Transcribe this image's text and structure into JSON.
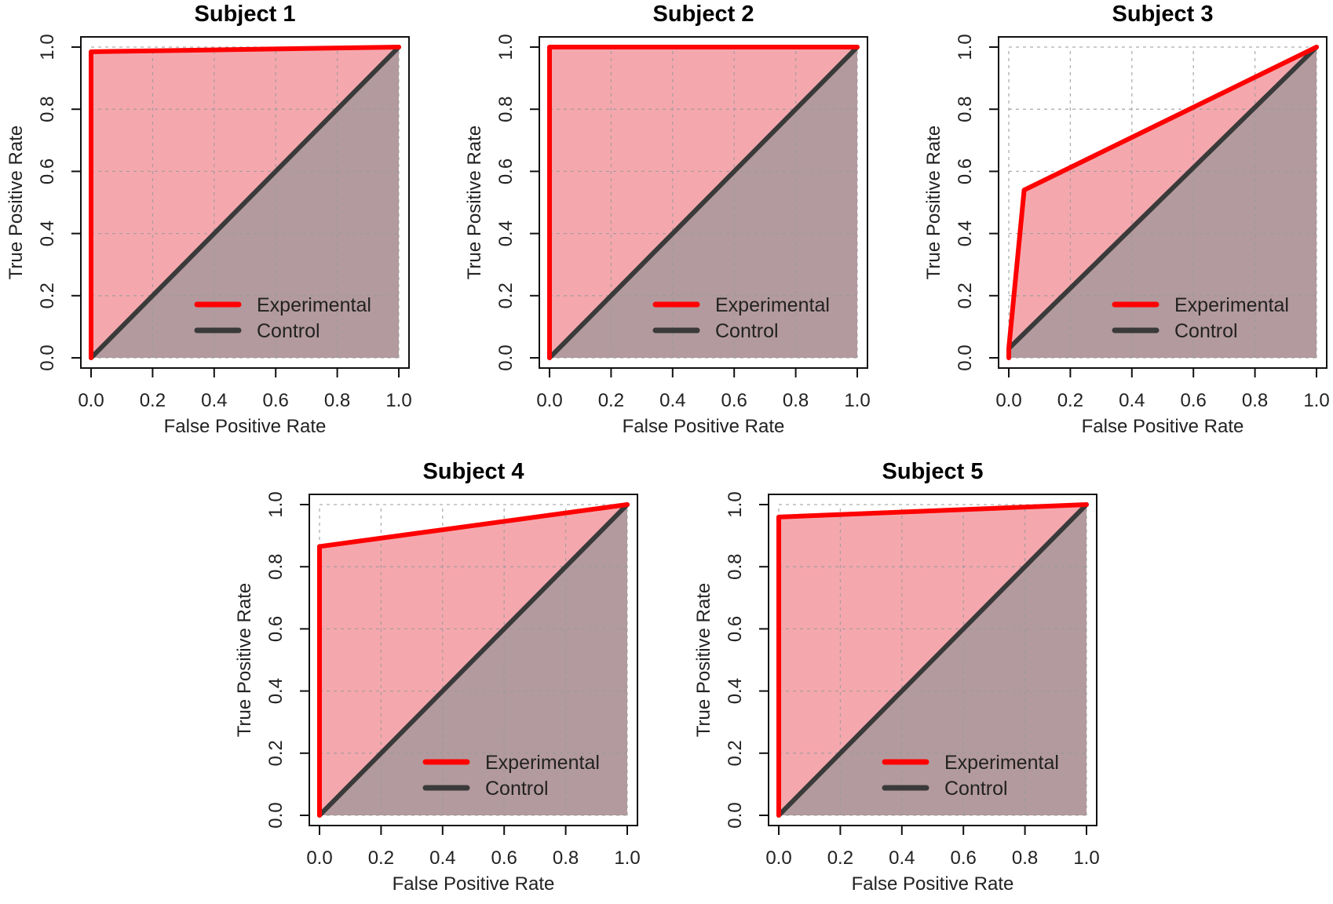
{
  "chart_data": [
    {
      "type": "line",
      "title": "Subject 1",
      "xlabel": "False Positive Rate",
      "ylabel": "True Positive Rate",
      "xlim": [
        0,
        1
      ],
      "ylim": [
        0,
        1
      ],
      "x_ticks": [
        "0.0",
        "0.2",
        "0.4",
        "0.6",
        "0.8",
        "1.0"
      ],
      "y_ticks": [
        "0.0",
        "0.2",
        "0.4",
        "0.6",
        "0.8",
        "1.0"
      ],
      "grid": true,
      "legend_position": "bottom-right",
      "series": [
        {
          "name": "Experimental",
          "color": "#ff0000",
          "fill": "#f4a8ae",
          "points": [
            [
              0,
              0
            ],
            [
              0,
              0.985
            ],
            [
              1,
              1
            ]
          ]
        },
        {
          "name": "Control",
          "color": "#3a3a3a",
          "fill": "#b39a9e",
          "points": [
            [
              0,
              0
            ],
            [
              1,
              1
            ]
          ]
        }
      ]
    },
    {
      "type": "line",
      "title": "Subject 2",
      "xlabel": "False Positive Rate",
      "ylabel": "True Positive Rate",
      "xlim": [
        0,
        1
      ],
      "ylim": [
        0,
        1
      ],
      "x_ticks": [
        "0.0",
        "0.2",
        "0.4",
        "0.6",
        "0.8",
        "1.0"
      ],
      "y_ticks": [
        "0.0",
        "0.2",
        "0.4",
        "0.6",
        "0.8",
        "1.0"
      ],
      "grid": true,
      "legend_position": "bottom-right",
      "series": [
        {
          "name": "Experimental",
          "color": "#ff0000",
          "fill": "#f4a8ae",
          "points": [
            [
              0,
              0
            ],
            [
              0,
              1
            ],
            [
              1,
              1
            ]
          ]
        },
        {
          "name": "Control",
          "color": "#3a3a3a",
          "fill": "#b39a9e",
          "points": [
            [
              0,
              0
            ],
            [
              1,
              1
            ]
          ]
        }
      ]
    },
    {
      "type": "line",
      "title": "Subject 3",
      "xlabel": "False Positive Rate",
      "ylabel": "True Positive Rate",
      "xlim": [
        0,
        1
      ],
      "ylim": [
        0,
        1
      ],
      "x_ticks": [
        "0.0",
        "0.2",
        "0.4",
        "0.6",
        "0.8",
        "1.0"
      ],
      "y_ticks": [
        "0.0",
        "0.2",
        "0.4",
        "0.6",
        "0.8",
        "1.0"
      ],
      "grid": true,
      "legend_position": "bottom-right",
      "series": [
        {
          "name": "Experimental",
          "color": "#ff0000",
          "fill": "#f4a8ae",
          "points": [
            [
              0,
              0
            ],
            [
              0,
              0.03
            ],
            [
              0.05,
              0.54
            ],
            [
              1,
              1
            ]
          ]
        },
        {
          "name": "Control",
          "color": "#3a3a3a",
          "fill": "#b39a9e",
          "points": [
            [
              0,
              0.03
            ],
            [
              1,
              1
            ]
          ]
        }
      ]
    },
    {
      "type": "line",
      "title": "Subject 4",
      "xlabel": "False Positive Rate",
      "ylabel": "True Positive Rate",
      "xlim": [
        0,
        1
      ],
      "ylim": [
        0,
        1
      ],
      "x_ticks": [
        "0.0",
        "0.2",
        "0.4",
        "0.6",
        "0.8",
        "1.0"
      ],
      "y_ticks": [
        "0.0",
        "0.2",
        "0.4",
        "0.6",
        "0.8",
        "1.0"
      ],
      "grid": true,
      "legend_position": "bottom-right",
      "series": [
        {
          "name": "Experimental",
          "color": "#ff0000",
          "fill": "#f4a8ae",
          "points": [
            [
              0,
              0
            ],
            [
              0,
              0.865
            ],
            [
              1,
              1
            ]
          ]
        },
        {
          "name": "Control",
          "color": "#3a3a3a",
          "fill": "#b39a9e",
          "points": [
            [
              0,
              0
            ],
            [
              1,
              1
            ]
          ]
        }
      ]
    },
    {
      "type": "line",
      "title": "Subject 5",
      "xlabel": "False Positive Rate",
      "ylabel": "True Positive Rate",
      "xlim": [
        0,
        1
      ],
      "ylim": [
        0,
        1
      ],
      "x_ticks": [
        "0.0",
        "0.2",
        "0.4",
        "0.6",
        "0.8",
        "1.0"
      ],
      "y_ticks": [
        "0.0",
        "0.2",
        "0.4",
        "0.6",
        "0.8",
        "1.0"
      ],
      "grid": true,
      "legend_position": "bottom-right",
      "series": [
        {
          "name": "Experimental",
          "color": "#ff0000",
          "fill": "#f4a8ae",
          "points": [
            [
              0,
              0
            ],
            [
              0,
              0.96
            ],
            [
              1,
              1
            ]
          ]
        },
        {
          "name": "Control",
          "color": "#3a3a3a",
          "fill": "#b39a9e",
          "points": [
            [
              0,
              0
            ],
            [
              1,
              1
            ]
          ]
        }
      ]
    }
  ]
}
